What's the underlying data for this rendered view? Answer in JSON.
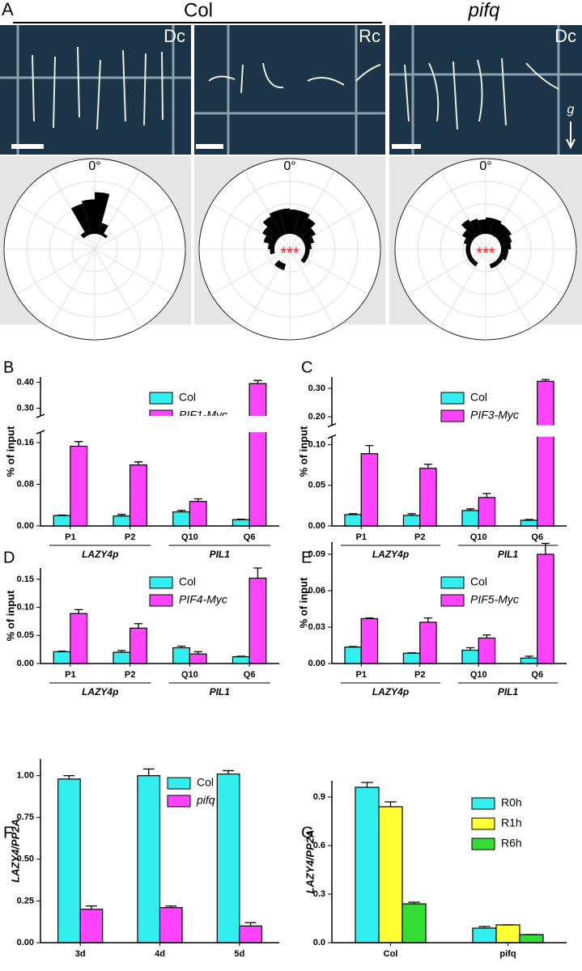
{
  "panel_a": {
    "label": "A",
    "groups": [
      {
        "label": "Col"
      },
      {
        "label": "pifq"
      }
    ],
    "photos": [
      {
        "label": "Dc"
      },
      {
        "label": "Rc"
      },
      {
        "label": "Dc",
        "annotation": "g"
      }
    ]
  },
  "chart_data": [
    {
      "type": "polar-bar",
      "theta_label": "0°",
      "rlim": [
        0,
        1
      ],
      "rgrid": [
        0.25,
        0.5,
        0.75,
        1
      ],
      "thetagrid": [
        0,
        30,
        60,
        90,
        120,
        150,
        180,
        210,
        240,
        270,
        300,
        330
      ],
      "sector_width": 15,
      "color": "#000000",
      "theta": [
        -37.5,
        -22.5,
        -7.5,
        7.5,
        22.5,
        37.5
      ],
      "values": [
        0.22,
        0.52,
        0.55,
        0.63,
        0.3,
        0.2
      ]
    },
    {
      "type": "polar-bar",
      "theta_label": "0°",
      "annotation": "***",
      "annotation_color": "#e8202a",
      "rlim": [
        0,
        1
      ],
      "rgrid": [
        0.25,
        0.5,
        0.75,
        1
      ],
      "thetagrid": [
        0,
        30,
        60,
        90,
        120,
        150,
        180,
        210,
        240,
        270,
        300,
        330
      ],
      "sector_width": 15,
      "color": "#000000",
      "theta": [
        -157.5,
        -142.5,
        -97.5,
        -82.5,
        -67.5,
        -52.5,
        -37.5,
        -22.5,
        -7.5,
        7.5,
        22.5,
        37.5,
        52.5,
        67.5,
        82.5,
        97.5,
        112.5,
        127.5
      ],
      "values": [
        0.24,
        0.24,
        0.22,
        0.24,
        0.3,
        0.35,
        0.42,
        0.45,
        0.45,
        0.44,
        0.44,
        0.4,
        0.33,
        0.28,
        0.24,
        0.22,
        0.22,
        0.22
      ]
    },
    {
      "type": "polar-bar",
      "theta_label": "0°",
      "annotation": "***",
      "annotation_color": "#e8202a",
      "rlim": [
        0,
        1
      ],
      "rgrid": [
        0.25,
        0.5,
        0.75,
        1
      ],
      "thetagrid": [
        0,
        30,
        60,
        90,
        120,
        150,
        180,
        210,
        240,
        270,
        300,
        330
      ],
      "sector_width": 15,
      "color": "#000000",
      "theta": [
        -142.5,
        -127.5,
        -112.5,
        -97.5,
        -82.5,
        -67.5,
        -52.5,
        -37.5,
        -22.5,
        -7.5,
        7.5,
        22.5,
        37.5,
        52.5,
        67.5,
        82.5,
        97.5,
        112.5,
        127.5,
        142.5,
        157.5
      ],
      "values": [
        0.22,
        0.22,
        0.22,
        0.22,
        0.22,
        0.25,
        0.3,
        0.38,
        0.35,
        0.33,
        0.35,
        0.35,
        0.33,
        0.33,
        0.3,
        0.28,
        0.25,
        0.25,
        0.22,
        0.22,
        0.22
      ]
    },
    {
      "type": "bar",
      "panel_label": "B",
      "ylabel": "% of input",
      "ylim": [
        0,
        0.42
      ],
      "axis_break": [
        0.18,
        0.27
      ],
      "yticks": [
        {
          "value": 0,
          "label": "0.00"
        },
        0.08,
        0.16,
        {
          "value": 0.3,
          "label": "0.30"
        },
        {
          "value": 0.4,
          "label": "0.40"
        }
      ],
      "categories": [
        "P1",
        "P2",
        "Q10",
        "Q6"
      ],
      "category_groups": [
        {
          "label": "LAZY4p",
          "members": [
            0,
            1
          ]
        },
        {
          "label": "PIL1",
          "members": [
            2,
            3
          ]
        }
      ],
      "series": [
        {
          "name": "Col",
          "color": "#33eeee",
          "values": [
            0.02,
            0.019,
            0.027,
            0.012
          ],
          "errors": [
            0.001,
            0.003,
            0.003,
            0.001
          ]
        },
        {
          "name": "PIF1-Myc",
          "italic": true,
          "color": "#ff44ff",
          "values": [
            0.153,
            0.117,
            0.047,
            0.395
          ],
          "errors": [
            0.009,
            0.006,
            0.005,
            0.012
          ]
        }
      ]
    },
    {
      "type": "bar",
      "panel_label": "C",
      "ylabel": "% of input",
      "ylim": [
        0,
        0.34
      ],
      "axis_break": [
        0.11,
        0.17
      ],
      "yticks": [
        {
          "value": 0,
          "label": "0.00"
        },
        0.05,
        {
          "value": 0.1,
          "label": "0.10"
        },
        {
          "value": 0.2,
          "label": "0.20"
        },
        {
          "value": 0.3,
          "label": "0.30"
        }
      ],
      "categories": [
        "P1",
        "P2",
        "Q10",
        "Q6"
      ],
      "category_groups": [
        {
          "label": "LAZY4p",
          "members": [
            0,
            1
          ]
        },
        {
          "label": "PIL1",
          "members": [
            2,
            3
          ]
        }
      ],
      "series": [
        {
          "name": "Col",
          "color": "#33eeee",
          "values": [
            0.014,
            0.013,
            0.019,
            0.007
          ],
          "errors": [
            0.001,
            0.002,
            0.002,
            0.001
          ]
        },
        {
          "name": "PIF3-Myc",
          "italic": true,
          "color": "#ff44ff",
          "values": [
            0.089,
            0.071,
            0.035,
            0.325
          ],
          "errors": [
            0.01,
            0.005,
            0.005,
            0.006
          ]
        }
      ]
    },
    {
      "type": "bar",
      "panel_label": "D",
      "ylabel": "% of input",
      "ylim": [
        0,
        0.17
      ],
      "yticks": [
        {
          "value": 0,
          "label": "0.00"
        },
        0.05,
        {
          "value": 0.1,
          "label": "0.10"
        },
        0.15
      ],
      "categories": [
        "P1",
        "P2",
        "Q10",
        "Q6"
      ],
      "category_groups": [
        {
          "label": "LAZY4p",
          "members": [
            0,
            1
          ]
        },
        {
          "label": "PIL1",
          "members": [
            2,
            3
          ]
        }
      ],
      "series": [
        {
          "name": "Col",
          "color": "#33eeee",
          "values": [
            0.021,
            0.02,
            0.028,
            0.012
          ],
          "errors": [
            0.001,
            0.003,
            0.003,
            0.001
          ]
        },
        {
          "name": "PIF4-Myc",
          "italic": true,
          "color": "#ff44ff",
          "values": [
            0.089,
            0.063,
            0.017,
            0.152
          ],
          "errors": [
            0.007,
            0.008,
            0.004,
            0.018
          ]
        }
      ]
    },
    {
      "type": "bar",
      "panel_label": "E",
      "ylabel": "% of input",
      "ylim": [
        0,
        0.1
      ],
      "yticks": [
        {
          "value": 0,
          "label": "0.00"
        },
        0.03,
        0.06,
        0.09
      ],
      "categories": [
        "P1",
        "P2",
        "Q10",
        "Q6"
      ],
      "category_groups": [
        {
          "label": "LAZY4p",
          "members": [
            0,
            1
          ]
        },
        {
          "label": "PIL1",
          "members": [
            2,
            3
          ]
        }
      ],
      "series": [
        {
          "name": "Col",
          "color": "#33eeee",
          "values": [
            0.0135,
            0.0085,
            0.011,
            0.0045
          ],
          "errors": [
            0.0005,
            0.0003,
            0.002,
            0.0015
          ]
        },
        {
          "name": "PIF5-Myc",
          "italic": true,
          "color": "#ff44ff",
          "values": [
            0.037,
            0.034,
            0.021,
            0.09
          ],
          "errors": [
            0.0005,
            0.0035,
            0.0025,
            0.009
          ]
        }
      ]
    },
    {
      "type": "bar",
      "panel_label": "F",
      "ylabel": "LAZY4/PP2A",
      "ylabel_italic": true,
      "category_bold": true,
      "ylim": [
        0,
        1.1
      ],
      "yticks": [
        {
          "value": 0,
          "label": "0.00"
        },
        0.25,
        {
          "value": 0.5,
          "label": "0.50"
        },
        0.75,
        {
          "value": 1,
          "label": "1.00"
        }
      ],
      "categories": [
        "3d",
        "4d",
        "5d"
      ],
      "series": [
        {
          "name": "Col",
          "color": "#33eeee",
          "values": [
            0.98,
            1.0,
            1.01
          ],
          "errors": [
            0.02,
            0.04,
            0.02
          ]
        },
        {
          "name": "pifq",
          "italic": true,
          "color": "#ff44ff",
          "values": [
            0.2,
            0.21,
            0.1
          ],
          "errors": [
            0.02,
            0.01,
            0.02
          ]
        }
      ]
    },
    {
      "type": "bar",
      "panel_label": "G",
      "ylabel": "LAZY4/PP2A",
      "ylabel_italic": true,
      "category_bold": true,
      "ylim": [
        0,
        1.0
      ],
      "yticks": [
        {
          "value": 0,
          "label": "0.0"
        },
        0.3,
        0.6,
        0.9
      ],
      "categories": [
        "Col",
        "pifq"
      ],
      "series": [
        {
          "name": "R0h",
          "color": "#33eeee",
          "values": [
            0.96,
            0.09
          ],
          "errors": [
            0.03,
            0.01
          ]
        },
        {
          "name": "R1h",
          "color": "#ffff33",
          "values": [
            0.84,
            0.11
          ],
          "errors": [
            0.03,
            0.0
          ]
        },
        {
          "name": "R6h",
          "color": "#33dd33",
          "values": [
            0.24,
            0.05
          ],
          "errors": [
            0.01,
            0.0
          ]
        }
      ]
    }
  ]
}
